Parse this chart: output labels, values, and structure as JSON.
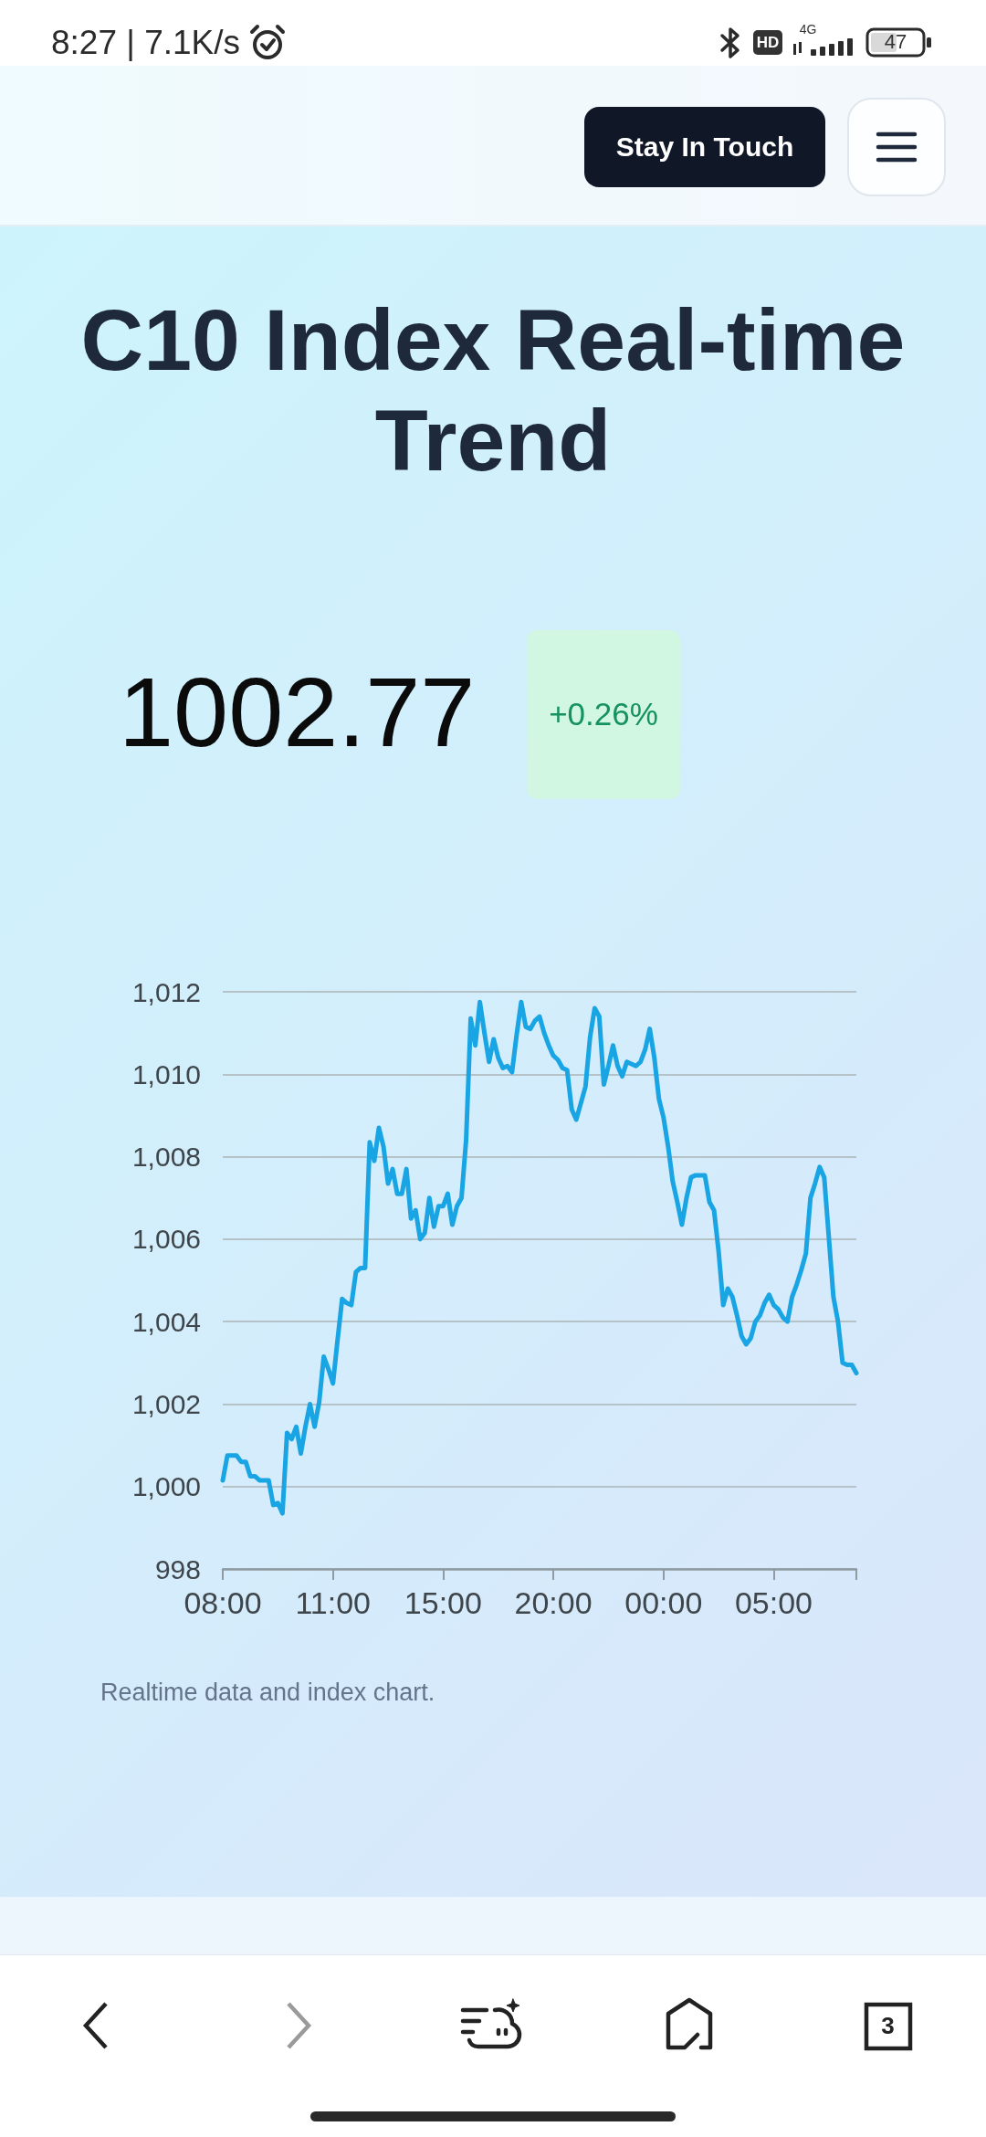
{
  "chart_data": {
    "type": "line",
    "title": "C10 Index Real-time Trend",
    "annotations": [
      "8:27 | 7.1K/s",
      "HD",
      "4G",
      "47",
      "Stay In Touch",
      "1002.77",
      "+0.26%",
      "Realtime data and index chart.",
      "3"
    ],
    "categories": [
      "08:00",
      null,
      null,
      null,
      null,
      null,
      null,
      null,
      null,
      null,
      null,
      null,
      null,
      null,
      null,
      null,
      null,
      null,
      null,
      null,
      null,
      null,
      null,
      null,
      "11:00",
      null,
      null,
      null,
      null,
      null,
      null,
      null,
      null,
      null,
      null,
      null,
      null,
      null,
      null,
      null,
      null,
      null,
      null,
      null,
      null,
      null,
      null,
      null,
      "15:00",
      null,
      null,
      null,
      null,
      null,
      null,
      null,
      null,
      null,
      null,
      null,
      null,
      null,
      null,
      null,
      null,
      null,
      null,
      null,
      null,
      null,
      null,
      null,
      "20:00",
      null,
      null,
      null,
      null,
      null,
      null,
      null,
      null,
      null,
      null,
      null,
      null,
      null,
      null,
      null,
      null,
      null,
      null,
      null,
      null,
      null,
      null,
      null,
      "00:00",
      null,
      null,
      null,
      null,
      null,
      null,
      null,
      null,
      null,
      null,
      null,
      null,
      null,
      null,
      null,
      null,
      null,
      null,
      null,
      null,
      null,
      null,
      null,
      "05:00",
      null,
      null,
      null,
      null,
      null,
      null,
      null,
      null,
      null,
      null,
      null,
      null,
      null,
      null,
      null,
      null,
      null,
      null
    ],
    "values": [
      1000.15,
      1000.75,
      1000.75,
      1000.75,
      1000.6,
      1000.6,
      1000.25,
      1000.25,
      1000.15,
      1000.15,
      1000.15,
      999.55,
      999.6,
      999.35,
      1001.3,
      1001.15,
      1001.45,
      1000.8,
      1001.45,
      1002,
      1001.45,
      1002.05,
      1003.15,
      1002.85,
      1002.5,
      1003.55,
      1004.55,
      1004.45,
      1004.4,
      1005.2,
      1005.3,
      1005.3,
      1008.35,
      1007.9,
      1008.7,
      1008.25,
      1007.35,
      1007.7,
      1007.1,
      1007.1,
      1007.7,
      1006.5,
      1006.7,
      1006,
      1006.15,
      1007,
      1006.3,
      1006.8,
      1006.8,
      1007.1,
      1006.35,
      1006.8,
      1007,
      1008.4,
      1011.35,
      1010.7,
      1011.75,
      1011,
      1010.3,
      1010.85,
      1010.4,
      1010.15,
      1010.2,
      1010.05,
      1010.95,
      1011.75,
      1011.15,
      1011.1,
      1011.3,
      1011.4,
      1011,
      1010.7,
      1010.45,
      1010.35,
      1010.15,
      1010.1,
      1009.15,
      1008.9,
      1009.3,
      1009.7,
      1010.9,
      1011.6,
      1011.4,
      1009.75,
      1010.2,
      1010.7,
      1010.2,
      1009.95,
      1010.3,
      1010.25,
      1010.2,
      1010.3,
      1010.6,
      1011.1,
      1010.4,
      1009.4,
      1008.95,
      1008.25,
      1007.4,
      1006.9,
      1006.35,
      1007,
      1007.5,
      1007.55,
      1007.55,
      1007.55,
      1006.9,
      1006.7,
      1005.7,
      1004.4,
      1004.8,
      1004.6,
      1004.15,
      1003.65,
      1003.45,
      1003.6,
      1004,
      1004.15,
      1004.45,
      1004.65,
      1004.4,
      1004.3,
      1004.1,
      1004,
      1004.6,
      1004.9,
      1005.25,
      1005.65,
      1007,
      1007.35,
      1007.75,
      1007.5,
      1006.05,
      1004.6,
      1004,
      1003,
      1002.95,
      1002.95,
      1002.75
    ],
    "color": "#19a4e3",
    "ylim": [
      998,
      1012
    ],
    "yticks": [
      998,
      {
        "value": 1000,
        "label": "1,000"
      },
      {
        "value": 1002,
        "label": "1,002"
      },
      {
        "value": 1004,
        "label": "1,004"
      },
      {
        "value": 1006,
        "label": "1,006"
      },
      {
        "value": 1008,
        "label": "1,008"
      },
      {
        "value": 1010,
        "label": "1,010"
      },
      {
        "value": 1012,
        "label": "1,012"
      }
    ],
    "grid": "y",
    "marker": "none",
    "line_style": "solid"
  }
}
